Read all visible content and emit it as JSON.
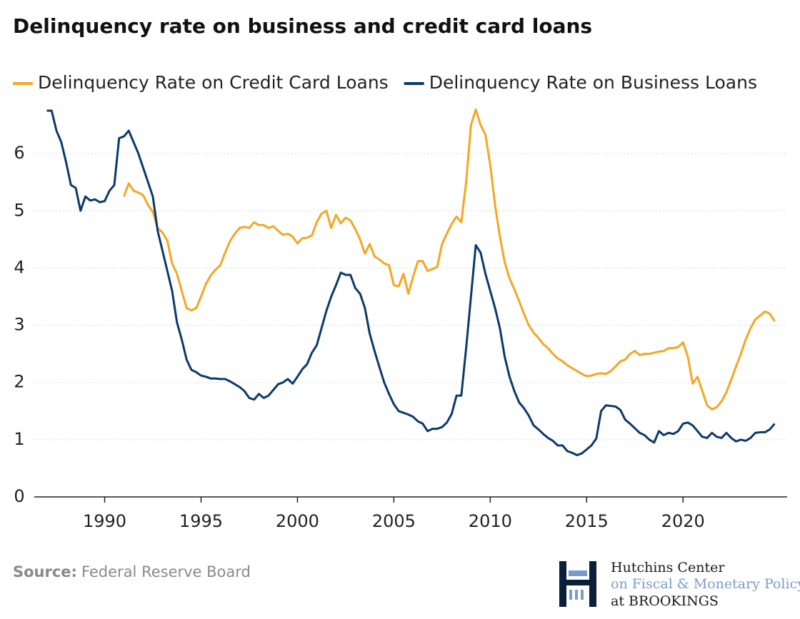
{
  "chart_data": {
    "type": "line",
    "title": "Delinquency rate on business and credit card loans",
    "source_label": "Source:",
    "source": "Federal Reserve Board",
    "logo": [
      "Hutchins Center",
      "on Fiscal & Monetary Policy",
      "at BROOKINGS"
    ],
    "xlim": [
      1986.35,
      2025.4
    ],
    "xticks": [
      1990,
      1995,
      2000,
      2005,
      2010,
      2015,
      2020
    ],
    "ylim": [
      0,
      6.8
    ],
    "yticks": [
      0,
      1,
      2,
      3,
      4,
      5,
      6
    ],
    "grid": true,
    "x": [
      1987,
      1987.25,
      1987.5,
      1987.75,
      1988,
      1988.25,
      1988.5,
      1988.75,
      1989,
      1989.25,
      1989.5,
      1989.75,
      1990,
      1990.25,
      1990.5,
      1990.75,
      1991,
      1991.25,
      1991.5,
      1991.75,
      1992,
      1992.25,
      1992.5,
      1992.75,
      1993,
      1993.25,
      1993.5,
      1993.75,
      1994,
      1994.25,
      1994.5,
      1994.75,
      1995,
      1995.25,
      1995.5,
      1995.75,
      1996,
      1996.25,
      1996.5,
      1996.75,
      1997,
      1997.25,
      1997.5,
      1997.75,
      1998,
      1998.25,
      1998.5,
      1998.75,
      1999,
      1999.25,
      1999.5,
      1999.75,
      2000,
      2000.25,
      2000.5,
      2000.75,
      2001,
      2001.25,
      2001.5,
      2001.75,
      2002,
      2002.25,
      2002.5,
      2002.75,
      2003,
      2003.25,
      2003.5,
      2003.75,
      2004,
      2004.25,
      2004.5,
      2004.75,
      2005,
      2005.25,
      2005.5,
      2005.75,
      2006,
      2006.25,
      2006.5,
      2006.75,
      2007,
      2007.25,
      2007.5,
      2007.75,
      2008,
      2008.25,
      2008.5,
      2008.75,
      2009,
      2009.25,
      2009.5,
      2009.75,
      2010,
      2010.25,
      2010.5,
      2010.75,
      2011,
      2011.25,
      2011.5,
      2011.75,
      2012,
      2012.25,
      2012.5,
      2012.75,
      2013,
      2013.25,
      2013.5,
      2013.75,
      2014,
      2014.25,
      2014.5,
      2014.75,
      2015,
      2015.25,
      2015.5,
      2015.75,
      2016,
      2016.25,
      2016.5,
      2016.75,
      2017,
      2017.25,
      2017.5,
      2017.75,
      2018,
      2018.25,
      2018.5,
      2018.75,
      2019,
      2019.25,
      2019.5,
      2019.75,
      2020,
      2020.25,
      2020.5,
      2020.75,
      2021,
      2021.25,
      2021.5,
      2021.75,
      2022,
      2022.25,
      2022.5,
      2022.75,
      2023,
      2023.25,
      2023.5,
      2023.75,
      2024,
      2024.25,
      2024.5,
      2024.75
    ],
    "series": [
      {
        "name": "Delinquency Rate on Credit Card Loans",
        "color": "#f5a623",
        "values": [
          null,
          null,
          null,
          null,
          null,
          null,
          null,
          null,
          null,
          null,
          null,
          null,
          null,
          null,
          null,
          null,
          5.25,
          5.48,
          5.35,
          5.32,
          5.27,
          5.1,
          4.98,
          4.7,
          4.62,
          4.48,
          4.08,
          3.9,
          3.6,
          3.3,
          3.26,
          3.3,
          3.5,
          3.72,
          3.87,
          3.97,
          4.05,
          4.27,
          4.47,
          4.6,
          4.7,
          4.72,
          4.7,
          4.8,
          4.75,
          4.75,
          4.7,
          4.73,
          4.65,
          4.58,
          4.6,
          4.55,
          4.43,
          4.52,
          4.53,
          4.57,
          4.8,
          4.95,
          5.0,
          4.7,
          4.93,
          4.78,
          4.88,
          4.83,
          4.68,
          4.5,
          4.25,
          4.42,
          4.2,
          4.15,
          4.08,
          4.05,
          3.7,
          3.68,
          3.9,
          3.55,
          3.85,
          4.12,
          4.12,
          3.95,
          3.98,
          4.02,
          4.42,
          4.6,
          4.77,
          4.9,
          4.8,
          5.5,
          6.5,
          6.77,
          6.5,
          6.33,
          5.8,
          5.1,
          4.55,
          4.1,
          3.82,
          3.63,
          3.42,
          3.2,
          3.0,
          2.87,
          2.78,
          2.67,
          2.6,
          2.5,
          2.42,
          2.37,
          2.3,
          2.25,
          2.2,
          2.15,
          2.11,
          2.12,
          2.15,
          2.16,
          2.15,
          2.2,
          2.28,
          2.37,
          2.4,
          2.5,
          2.55,
          2.48,
          2.5,
          2.5,
          2.52,
          2.54,
          2.55,
          2.6,
          2.6,
          2.62,
          2.7,
          2.45,
          1.98,
          2.1,
          1.85,
          1.6,
          1.53,
          1.57,
          1.67,
          1.83,
          2.05,
          2.28,
          2.5,
          2.75,
          2.95,
          3.1,
          3.17,
          3.24,
          3.2,
          3.07
        ]
      },
      {
        "name": "Delinquency Rate on Business Loans",
        "color": "#0b3a6b",
        "values": [
          6.75,
          6.75,
          6.4,
          6.2,
          5.85,
          5.45,
          5.4,
          5.0,
          5.25,
          5.18,
          5.2,
          5.15,
          5.17,
          5.35,
          5.45,
          6.27,
          6.3,
          6.4,
          6.2,
          6.0,
          5.75,
          5.5,
          5.25,
          4.65,
          4.3,
          3.95,
          3.6,
          3.05,
          2.75,
          2.4,
          2.22,
          2.18,
          2.12,
          2.1,
          2.07,
          2.07,
          2.06,
          2.06,
          2.02,
          1.97,
          1.92,
          1.85,
          1.73,
          1.7,
          1.8,
          1.73,
          1.77,
          1.87,
          1.97,
          2.0,
          2.06,
          1.98,
          2.1,
          2.23,
          2.32,
          2.52,
          2.65,
          2.95,
          3.25,
          3.5,
          3.7,
          3.92,
          3.88,
          3.88,
          3.65,
          3.55,
          3.3,
          2.85,
          2.55,
          2.27,
          2.0,
          1.8,
          1.62,
          1.5,
          1.47,
          1.44,
          1.4,
          1.32,
          1.28,
          1.15,
          1.19,
          1.19,
          1.22,
          1.3,
          1.45,
          1.77,
          1.77,
          2.6,
          3.5,
          4.4,
          4.27,
          3.9,
          3.6,
          3.3,
          2.95,
          2.45,
          2.1,
          1.85,
          1.65,
          1.55,
          1.42,
          1.25,
          1.18,
          1.1,
          1.03,
          0.98,
          0.9,
          0.9,
          0.8,
          0.77,
          0.73,
          0.76,
          0.83,
          0.9,
          1.02,
          1.5,
          1.6,
          1.59,
          1.58,
          1.52,
          1.35,
          1.28,
          1.2,
          1.12,
          1.08,
          1.0,
          0.95,
          1.15,
          1.08,
          1.12,
          1.1,
          1.15,
          1.28,
          1.3,
          1.25,
          1.15,
          1.05,
          1.03,
          1.12,
          1.05,
          1.03,
          1.12,
          1.03,
          0.97,
          1.0,
          0.98,
          1.03,
          1.12,
          1.13,
          1.13,
          1.18,
          1.28
        ]
      }
    ]
  }
}
